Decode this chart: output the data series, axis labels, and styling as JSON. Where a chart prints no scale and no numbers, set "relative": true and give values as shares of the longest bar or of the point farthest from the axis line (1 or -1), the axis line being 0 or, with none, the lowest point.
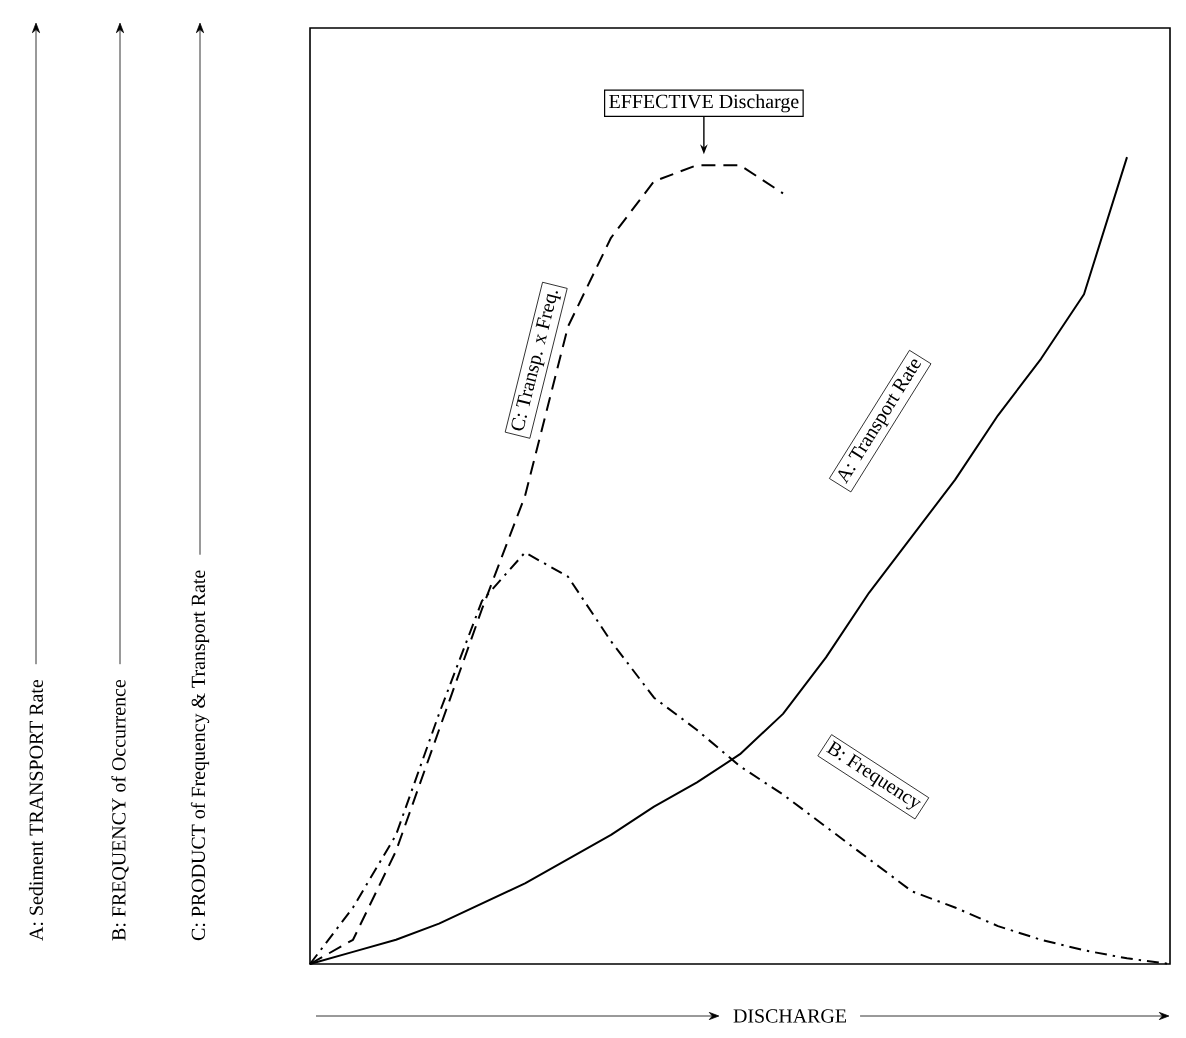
{
  "chart_data": {
    "type": "line",
    "relative": true,
    "xlabel": "DISCHARGE",
    "annotations": [
      "A:  Sediment TRANSPORT Rate",
      "B:  FREQUENCY of Occurrence",
      "C:  PRODUCT of Frequency & Transport Rate",
      "EFFECTIVE Discharge"
    ],
    "categories": [
      null,
      null,
      null,
      null,
      null,
      null,
      null,
      null,
      null,
      null,
      null,
      null,
      null,
      null,
      null,
      null,
      null,
      null,
      null,
      null,
      null
    ],
    "series": [
      {
        "name": "A:  Transport Rate",
        "color": "#000000",
        "line_style": "solid",
        "values": [
          0,
          0.015,
          0.03,
          0.05,
          0.075,
          0.1,
          0.13,
          0.16,
          0.195,
          0.225,
          0.26,
          0.31,
          0.38,
          0.46,
          0.53,
          0.6,
          0.68,
          0.75,
          0.83,
          1.0,
          null
        ]
      },
      {
        "name": "B:  Frequency",
        "color": "#000000",
        "line_style": "dashdot",
        "values": [
          0,
          0.07,
          0.16,
          0.31,
          0.45,
          0.51,
          0.48,
          0.4,
          0.33,
          0.29,
          0.245,
          0.21,
          0.17,
          0.13,
          0.09,
          0.07,
          0.047,
          0.03,
          0.017,
          0.007,
          0
        ]
      },
      {
        "name": "C:  Transp. x Freq.",
        "color": "#000000",
        "line_style": "dashed",
        "values": [
          0,
          0.03,
          0.14,
          0.29,
          0.44,
          0.58,
          0.79,
          0.9,
          0.97,
          0.99,
          0.99,
          0.955,
          null,
          null,
          null,
          null,
          null,
          null,
          null,
          null,
          null
        ]
      }
    ]
  }
}
